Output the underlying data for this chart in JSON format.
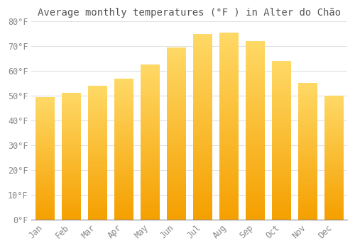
{
  "title": "Average monthly temperatures (°F ) in Alter do Chão",
  "months": [
    "Jan",
    "Feb",
    "Mar",
    "Apr",
    "May",
    "Jun",
    "Jul",
    "Aug",
    "Sep",
    "Oct",
    "Nov",
    "Dec"
  ],
  "values": [
    49.5,
    51,
    54,
    57,
    62.5,
    69.5,
    75,
    75.5,
    72,
    64,
    55,
    50
  ],
  "bar_color_bottom": "#F5A000",
  "bar_color_top": "#FFD966",
  "background_color": "#FFFFFF",
  "grid_color": "#E0E0E0",
  "text_color": "#888888",
  "ylim": [
    0,
    80
  ],
  "yticks": [
    0,
    10,
    20,
    30,
    40,
    50,
    60,
    70,
    80
  ],
  "title_fontsize": 10,
  "tick_fontsize": 8.5,
  "font_family": "monospace"
}
